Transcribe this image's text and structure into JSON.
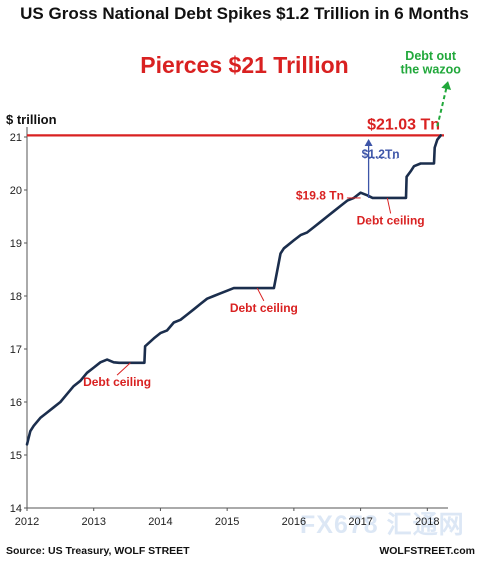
{
  "header": {
    "title": "US Gross National Debt Spikes $1.2 Trillion in 6 Months",
    "subtitle": "Pierces $21 Trillion",
    "unit_label": "$ trillion"
  },
  "footer": {
    "source": "Source: US Treasury, WOLF STREET",
    "brand": "WOLFSTREET.com",
    "watermark": "FX678 汇通网"
  },
  "colors": {
    "line": "#1b2e4d",
    "accent_red": "#d92121",
    "accent_blue": "#3d55a8",
    "accent_green": "#21a83b",
    "axis": "#555555",
    "text": "#222222"
  },
  "chart_data": {
    "type": "line",
    "title": "US Gross National Debt Spikes $1.2 Trillion in 6 Months",
    "subtitle": "Pierces $21 Trillion",
    "ylabel": "$ trillion",
    "xlabel": "",
    "xlim": [
      2012.0,
      2018.25
    ],
    "ylim": [
      14,
      21
    ],
    "x_ticks": [
      2012,
      2013,
      2014,
      2015,
      2016,
      2017,
      2018
    ],
    "y_ticks": [
      14,
      15,
      16,
      17,
      18,
      19,
      20,
      21
    ],
    "grid": false,
    "legend": "none",
    "series": [
      {
        "x": [
          2012.0,
          2012.05,
          2012.1,
          2012.2,
          2012.3,
          2012.4,
          2012.5,
          2012.6,
          2012.7,
          2012.8,
          2012.9,
          2013.0,
          2013.1,
          2013.2,
          2013.3,
          2013.38,
          2013.76,
          2013.77,
          2013.9,
          2014.0,
          2014.1,
          2014.2,
          2014.3,
          2014.4,
          2014.5,
          2014.6,
          2014.7,
          2014.8,
          2014.9,
          2015.0,
          2015.1,
          2015.2,
          2015.7,
          2015.8,
          2015.85,
          2015.9,
          2016.0,
          2016.1,
          2016.2,
          2016.3,
          2016.4,
          2016.5,
          2016.6,
          2016.7,
          2016.8,
          2016.9,
          2017.0,
          2017.1,
          2017.18,
          2017.55,
          2017.68,
          2017.69,
          2017.75,
          2017.8,
          2017.9,
          2017.95,
          2018.0,
          2018.05,
          2018.1,
          2018.11,
          2018.15,
          2018.2
        ],
        "values": [
          15.2,
          15.45,
          15.55,
          15.7,
          15.8,
          15.9,
          16.0,
          16.15,
          16.3,
          16.4,
          16.55,
          16.65,
          16.75,
          16.8,
          16.75,
          16.74,
          16.74,
          17.05,
          17.2,
          17.3,
          17.35,
          17.5,
          17.55,
          17.65,
          17.75,
          17.85,
          17.95,
          18.0,
          18.05,
          18.1,
          18.15,
          18.15,
          18.15,
          18.8,
          18.9,
          18.95,
          19.05,
          19.15,
          19.2,
          19.3,
          19.4,
          19.5,
          19.6,
          19.7,
          19.8,
          19.85,
          19.95,
          19.9,
          19.85,
          19.85,
          19.85,
          20.25,
          20.35,
          20.45,
          20.5,
          20.5,
          20.5,
          20.5,
          20.5,
          20.8,
          20.95,
          21.03
        ]
      }
    ],
    "reference_line": {
      "y": 21.03,
      "label": "$21.03 Tn"
    },
    "annotations": [
      {
        "text": "Debt ceiling",
        "x": 2013.35,
        "y": 16.3
      },
      {
        "text": "Debt ceiling",
        "x": 2015.55,
        "y": 17.7
      },
      {
        "text": "Debt ceiling",
        "x": 2017.45,
        "y": 19.35
      },
      {
        "text": "$19.8 Tn",
        "x": 2016.75,
        "y": 19.82
      },
      {
        "text": "$1.2Tn",
        "x": 2017.3,
        "y": 20.6
      },
      {
        "text": "Debt out",
        "x": 2018.05,
        "y": 22.45
      },
      {
        "text": "the wazoo",
        "x": 2018.05,
        "y": 22.2
      }
    ]
  }
}
